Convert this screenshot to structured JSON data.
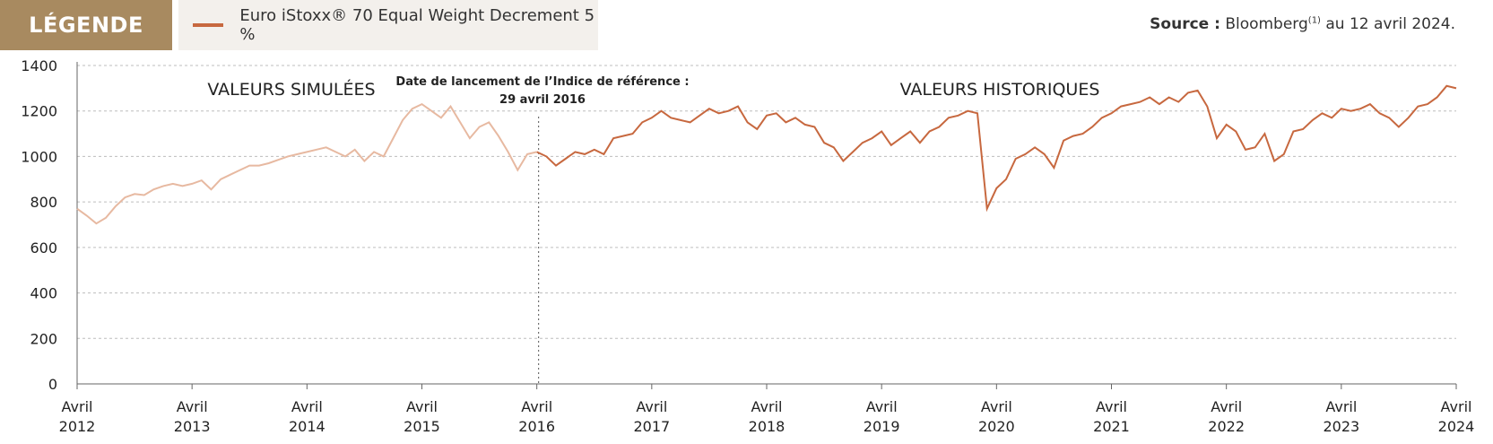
{
  "legend": {
    "tag": "LÉGENDE",
    "series_label": "Euro iStoxx® 70 Equal Weight Decrement 5 %"
  },
  "source": {
    "label": "Source :",
    "text_before": "Bloomberg",
    "superscript": "(1)",
    "text_after": "au 12 avril 2024."
  },
  "colors": {
    "legend_tag_bg": "#a88a60",
    "historical_line": "#c7683f",
    "simulated_line": "#e7b9a1",
    "grid": "#bdbdbd"
  },
  "chart_data": {
    "type": "line",
    "ylim": [
      0,
      1400
    ],
    "yticks": [
      "0",
      "200",
      "400",
      "600",
      "800",
      "1000",
      "1200",
      "1400"
    ],
    "xrange": [
      "2012-04",
      "2024-04"
    ],
    "xticks": [
      {
        "month": "Avril",
        "year": "2012"
      },
      {
        "month": "Avril",
        "year": "2013"
      },
      {
        "month": "Avril",
        "year": "2014"
      },
      {
        "month": "Avril",
        "year": "2015"
      },
      {
        "month": "Avril",
        "year": "2016"
      },
      {
        "month": "Avril",
        "year": "2017"
      },
      {
        "month": "Avril",
        "year": "2018"
      },
      {
        "month": "Avril",
        "year": "2019"
      },
      {
        "month": "Avril",
        "year": "2020"
      },
      {
        "month": "Avril",
        "year": "2021"
      },
      {
        "month": "Avril",
        "year": "2022"
      },
      {
        "month": "Avril",
        "year": "2023"
      },
      {
        "month": "Avril",
        "year": "2024"
      }
    ],
    "grid": "horizontal dashed",
    "annotations": {
      "simulated": "VALEURS SIMULÉES",
      "historical": "VALEURS HISTORIQUES",
      "launch_line1": "Date de lancement de l’Indice de référence :",
      "launch_line2": "29 avril 2016",
      "launch_date": "2016-04-29"
    },
    "series": [
      {
        "segment": "simulated",
        "points": [
          [
            "2012-04",
            770
          ],
          [
            "2012-05",
            740
          ],
          [
            "2012-06",
            705
          ],
          [
            "2012-07",
            730
          ],
          [
            "2012-08",
            780
          ],
          [
            "2012-09",
            820
          ],
          [
            "2012-10",
            835
          ],
          [
            "2012-11",
            830
          ],
          [
            "2012-12",
            855
          ],
          [
            "2013-01",
            870
          ],
          [
            "2013-02",
            880
          ],
          [
            "2013-03",
            870
          ],
          [
            "2013-04",
            880
          ],
          [
            "2013-05",
            895
          ],
          [
            "2013-06",
            855
          ],
          [
            "2013-07",
            900
          ],
          [
            "2013-08",
            920
          ],
          [
            "2013-09",
            940
          ],
          [
            "2013-10",
            960
          ],
          [
            "2013-11",
            960
          ],
          [
            "2013-12",
            970
          ],
          [
            "2014-01",
            985
          ],
          [
            "2014-02",
            1000
          ],
          [
            "2014-03",
            1010
          ],
          [
            "2014-04",
            1020
          ],
          [
            "2014-05",
            1030
          ],
          [
            "2014-06",
            1040
          ],
          [
            "2014-07",
            1020
          ],
          [
            "2014-08",
            1000
          ],
          [
            "2014-09",
            1030
          ],
          [
            "2014-10",
            980
          ],
          [
            "2014-11",
            1020
          ],
          [
            "2014-12",
            1000
          ],
          [
            "2015-01",
            1080
          ],
          [
            "2015-02",
            1160
          ],
          [
            "2015-03",
            1210
          ],
          [
            "2015-04",
            1230
          ],
          [
            "2015-05",
            1200
          ],
          [
            "2015-06",
            1170
          ],
          [
            "2015-07",
            1220
          ],
          [
            "2015-08",
            1150
          ],
          [
            "2015-09",
            1080
          ],
          [
            "2015-10",
            1130
          ],
          [
            "2015-11",
            1150
          ],
          [
            "2015-12",
            1090
          ],
          [
            "2016-01",
            1020
          ],
          [
            "2016-02",
            940
          ],
          [
            "2016-03",
            1010
          ],
          [
            "2016-04",
            1020
          ]
        ]
      },
      {
        "segment": "historical",
        "points": [
          [
            "2016-04",
            1020
          ],
          [
            "2016-05",
            1000
          ],
          [
            "2016-06",
            960
          ],
          [
            "2016-07",
            990
          ],
          [
            "2016-08",
            1020
          ],
          [
            "2016-09",
            1010
          ],
          [
            "2016-10",
            1030
          ],
          [
            "2016-11",
            1010
          ],
          [
            "2016-12",
            1080
          ],
          [
            "2017-01",
            1090
          ],
          [
            "2017-02",
            1100
          ],
          [
            "2017-03",
            1150
          ],
          [
            "2017-04",
            1170
          ],
          [
            "2017-05",
            1200
          ],
          [
            "2017-06",
            1170
          ],
          [
            "2017-07",
            1160
          ],
          [
            "2017-08",
            1150
          ],
          [
            "2017-09",
            1180
          ],
          [
            "2017-10",
            1210
          ],
          [
            "2017-11",
            1190
          ],
          [
            "2017-12",
            1200
          ],
          [
            "2018-01",
            1220
          ],
          [
            "2018-02",
            1150
          ],
          [
            "2018-03",
            1120
          ],
          [
            "2018-04",
            1180
          ],
          [
            "2018-05",
            1190
          ],
          [
            "2018-06",
            1150
          ],
          [
            "2018-07",
            1170
          ],
          [
            "2018-08",
            1140
          ],
          [
            "2018-09",
            1130
          ],
          [
            "2018-10",
            1060
          ],
          [
            "2018-11",
            1040
          ],
          [
            "2018-12",
            980
          ],
          [
            "2019-01",
            1020
          ],
          [
            "2019-02",
            1060
          ],
          [
            "2019-03",
            1080
          ],
          [
            "2019-04",
            1110
          ],
          [
            "2019-05",
            1050
          ],
          [
            "2019-06",
            1080
          ],
          [
            "2019-07",
            1110
          ],
          [
            "2019-08",
            1060
          ],
          [
            "2019-09",
            1110
          ],
          [
            "2019-10",
            1130
          ],
          [
            "2019-11",
            1170
          ],
          [
            "2019-12",
            1180
          ],
          [
            "2020-01",
            1200
          ],
          [
            "2020-02",
            1190
          ],
          [
            "2020-03",
            770
          ],
          [
            "2020-04",
            860
          ],
          [
            "2020-05",
            900
          ],
          [
            "2020-06",
            990
          ],
          [
            "2020-07",
            1010
          ],
          [
            "2020-08",
            1040
          ],
          [
            "2020-09",
            1010
          ],
          [
            "2020-10",
            950
          ],
          [
            "2020-11",
            1070
          ],
          [
            "2020-12",
            1090
          ],
          [
            "2021-01",
            1100
          ],
          [
            "2021-02",
            1130
          ],
          [
            "2021-03",
            1170
          ],
          [
            "2021-04",
            1190
          ],
          [
            "2021-05",
            1220
          ],
          [
            "2021-06",
            1230
          ],
          [
            "2021-07",
            1240
          ],
          [
            "2021-08",
            1260
          ],
          [
            "2021-09",
            1230
          ],
          [
            "2021-10",
            1260
          ],
          [
            "2021-11",
            1240
          ],
          [
            "2021-12",
            1280
          ],
          [
            "2022-01",
            1290
          ],
          [
            "2022-02",
            1220
          ],
          [
            "2022-03",
            1080
          ],
          [
            "2022-04",
            1140
          ],
          [
            "2022-05",
            1110
          ],
          [
            "2022-06",
            1030
          ],
          [
            "2022-07",
            1040
          ],
          [
            "2022-08",
            1100
          ],
          [
            "2022-09",
            980
          ],
          [
            "2022-10",
            1010
          ],
          [
            "2022-11",
            1110
          ],
          [
            "2022-12",
            1120
          ],
          [
            "2023-01",
            1160
          ],
          [
            "2023-02",
            1190
          ],
          [
            "2023-03",
            1170
          ],
          [
            "2023-04",
            1210
          ],
          [
            "2023-05",
            1200
          ],
          [
            "2023-06",
            1210
          ],
          [
            "2023-07",
            1230
          ],
          [
            "2023-08",
            1190
          ],
          [
            "2023-09",
            1170
          ],
          [
            "2023-10",
            1130
          ],
          [
            "2023-11",
            1170
          ],
          [
            "2023-12",
            1220
          ],
          [
            "2024-01",
            1230
          ],
          [
            "2024-02",
            1260
          ],
          [
            "2024-03",
            1310
          ],
          [
            "2024-04",
            1300
          ]
        ]
      }
    ]
  }
}
